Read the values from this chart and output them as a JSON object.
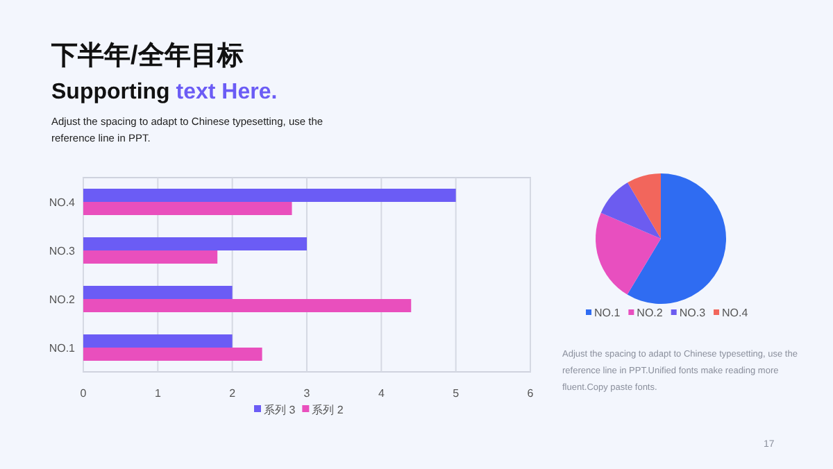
{
  "chart_data": [
    {
      "type": "bar",
      "orientation": "horizontal",
      "title": "下半年/全年目标",
      "subtitle": "Supporting **text Here.**",
      "annotations": [
        "Adjust the spacing to adapt to Chinese typesetting, use the reference line in PPT."
      ],
      "categories": [
        "NO.4",
        "NO.3",
        "NO.2",
        "NO.1"
      ],
      "series": [
        {
          "name": "系列 3",
          "color": "#6b5cf5",
          "values": [
            5,
            3,
            2,
            2
          ]
        },
        {
          "name": "系列 2",
          "color": "#e94fbd",
          "values": [
            2.8,
            1.8,
            4.4,
            2.4
          ]
        }
      ],
      "xlim": [
        0,
        6
      ],
      "xticks": [
        0,
        1,
        2,
        3,
        4,
        5,
        6
      ],
      "grid": "x",
      "legend": "bottom"
    },
    {
      "type": "pie",
      "categories": [
        "NO.1",
        "NO.2",
        "NO.3",
        "NO.4"
      ],
      "values": [
        58.6,
        22.9,
        10,
        8.5
      ],
      "colors": [
        "#2f6cf2",
        "#e84fbf",
        "#6c5cf0",
        "#f2665c"
      ],
      "legend": "bottom",
      "annotations": [
        "Adjust the spacing to adapt to Chinese typesetting, use the reference line in PPT.Unified fonts make reading more fluent.Copy paste fonts.",
        "17"
      ]
    }
  ]
}
